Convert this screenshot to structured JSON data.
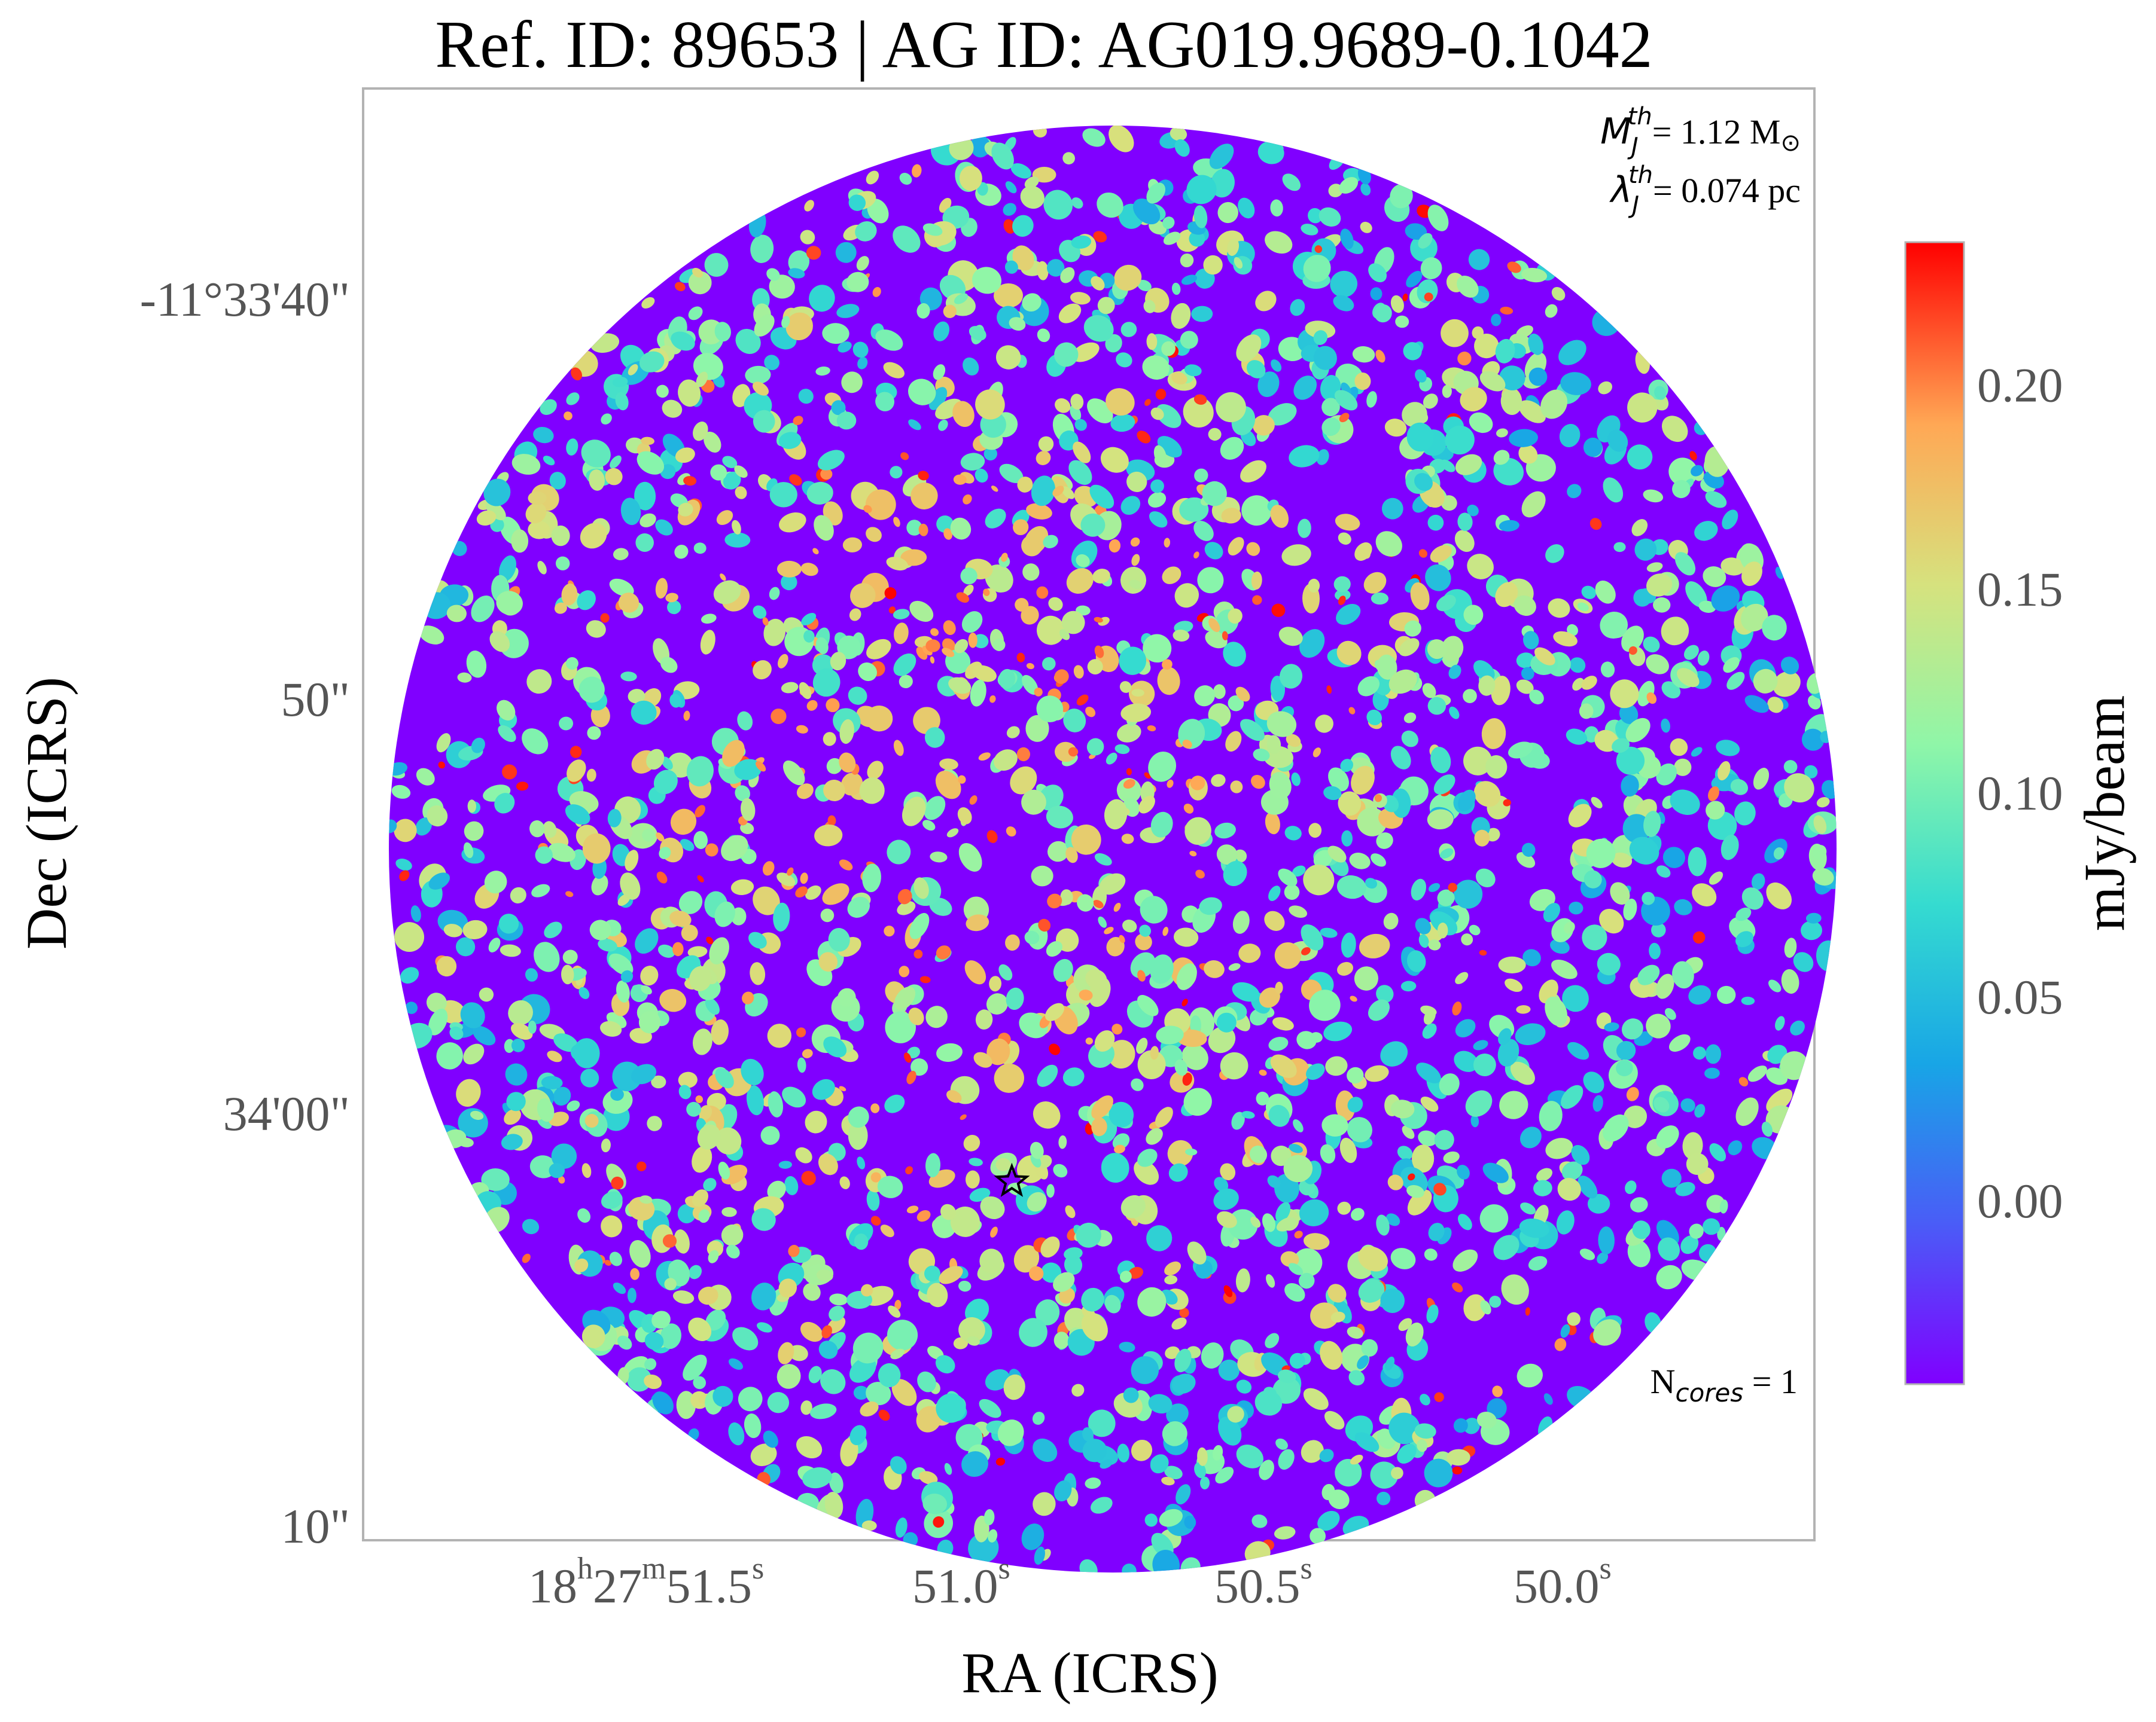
{
  "chart_data": {
    "type": "heatmap",
    "title": "Ref. ID: 89653 | AG ID: AG019.9689-0.1042",
    "xlabel": "RA (ICRS)",
    "ylabel": "Dec (ICRS)",
    "x_ticks": [
      {
        "pre": "18",
        "sup1": "h",
        "mid": "27",
        "sup2": "m",
        "val": "51.5",
        "sup3": "s"
      },
      {
        "pre": "",
        "sup1": "",
        "mid": "",
        "sup2": "",
        "val": "51.0",
        "sup3": "s"
      },
      {
        "pre": "",
        "sup1": "",
        "mid": "",
        "sup2": "",
        "val": "50.5",
        "sup3": "s"
      },
      {
        "pre": "",
        "sup1": "",
        "mid": "",
        "sup2": "",
        "val": "50.0",
        "sup3": "s"
      }
    ],
    "y_ticks": [
      "-11°33'40\"",
      "50\"",
      "34'00\"",
      "10\""
    ],
    "colorbar": {
      "label": "mJy/beam",
      "ticks": [
        "0.20",
        "0.15",
        "0.10",
        "0.05",
        "0.00"
      ],
      "tick_values": [
        0.2,
        0.15,
        0.1,
        0.05,
        0.0
      ],
      "range": [
        -0.045,
        0.235
      ],
      "colormap": "rainbow"
    },
    "annotations": {
      "mass_label": "M",
      "mass_sub": "J",
      "mass_sup": "th",
      "mass_value": "= 1.12 M",
      "mass_unit": "⊙",
      "length_label": "λ",
      "length_sub": "J",
      "length_sup": "th",
      "length_value": "= 0.074 pc",
      "cores_label": "N",
      "cores_sub": "cores",
      "cores_value": " = 1"
    },
    "marker": {
      "shape": "star",
      "ra_frac": 0.447,
      "dec_frac": 0.753
    },
    "cores": 1
  },
  "colors": {
    "frame": "#b3b3b3",
    "tick_text": "#555555",
    "label_text": "#000000"
  }
}
